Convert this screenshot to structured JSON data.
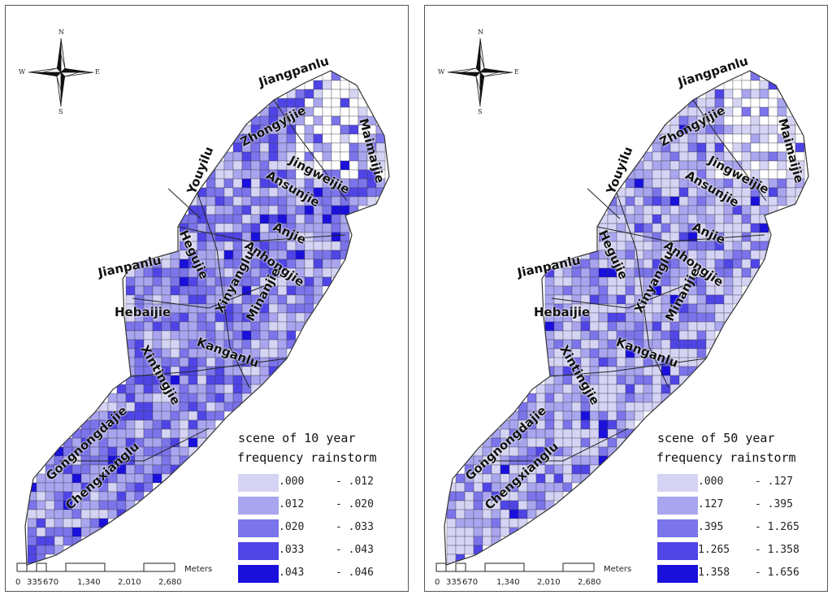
{
  "colors": {
    "class1": "#d6d4f4",
    "class2": "#a9a5ee",
    "class3": "#7b74ea",
    "class4": "#4f45e6",
    "class5": "#1a10dc",
    "background": "#ffffff",
    "line": "#333333"
  },
  "compass": {
    "n": "N",
    "s": "S",
    "e": "E",
    "w": "W"
  },
  "streets": [
    "Jiangpanlu",
    "Zhongyijie",
    "Maimaijie",
    "Jingweijie",
    "Ansunjie",
    "Youyilu",
    "Anjie",
    "Hegujie",
    "Anhongjie",
    "Jianpanlu",
    "Xinyanglu",
    "Minanjie",
    "Hebaijie",
    "Kanganlu",
    "Xintingjie",
    "Gongnongdajie",
    "Chengxianglu"
  ],
  "scale_bar": {
    "ticks": [
      "0",
      "335",
      "670",
      "1,340",
      "2,010",
      "2,680"
    ],
    "unit": "Meters"
  },
  "maps": [
    {
      "legend": {
        "title_line1": "scene of 10 year",
        "title_line2": "frequency rainstorm",
        "classes": [
          {
            "lower": ".000",
            "upper": "- .012"
          },
          {
            "lower": ".012",
            "upper": "- .020"
          },
          {
            "lower": ".020",
            "upper": "- .033"
          },
          {
            "lower": ".033",
            "upper": "- .043"
          },
          {
            "lower": ".043",
            "upper": "- .046"
          }
        ]
      },
      "distribution": [
        0.15,
        0.35,
        0.3,
        0.15,
        0.05
      ]
    },
    {
      "legend": {
        "title_line1": "scene of 50 year",
        "title_line2": "frequency rainstorm",
        "classes": [
          {
            "lower": ".000",
            "upper": "- .127"
          },
          {
            "lower": ".127",
            "upper": "- .395"
          },
          {
            "lower": ".395",
            "upper": "- 1.265"
          },
          {
            "lower": "1.265",
            "upper": "- 1.358"
          },
          {
            "lower": "1.358",
            "upper": "- 1.656"
          }
        ]
      },
      "distribution": [
        0.45,
        0.3,
        0.15,
        0.07,
        0.03
      ]
    }
  ]
}
